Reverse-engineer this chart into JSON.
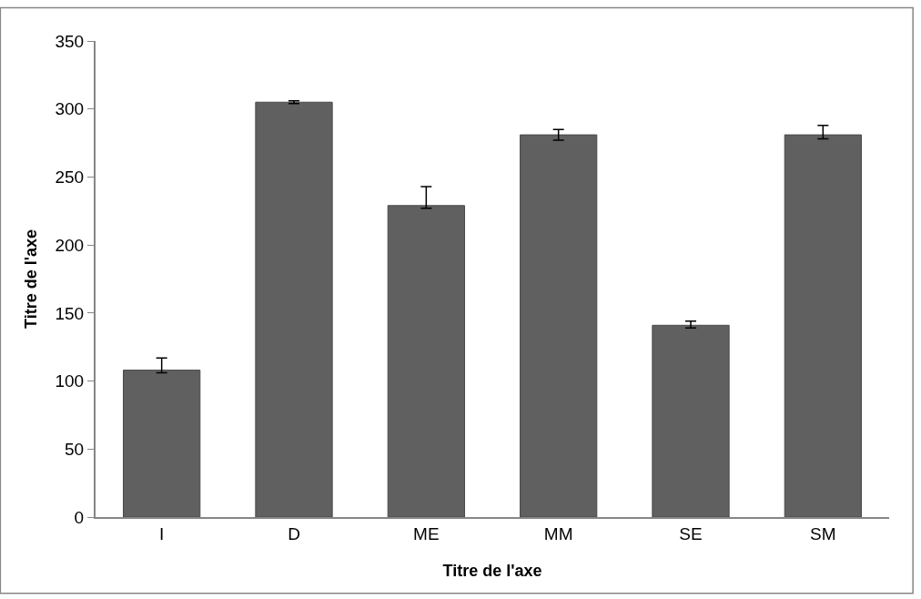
{
  "chart_data": {
    "type": "bar",
    "xlabel": "Titre de l'axe",
    "ylabel": "Titre de l'axe",
    "categories": [
      "I",
      "D",
      "ME",
      "MM",
      "SE",
      "SM"
    ],
    "values": [
      108,
      305,
      229,
      281,
      141,
      281
    ],
    "errors": [
      [
        106,
        117
      ],
      [
        304,
        306
      ],
      [
        227,
        243
      ],
      [
        277,
        285
      ],
      [
        139,
        144
      ],
      [
        278,
        288
      ]
    ],
    "color": "#606060",
    "ylim": [
      0,
      350
    ],
    "yticks": [
      0,
      50,
      100,
      150,
      200,
      250,
      300,
      350
    ]
  }
}
